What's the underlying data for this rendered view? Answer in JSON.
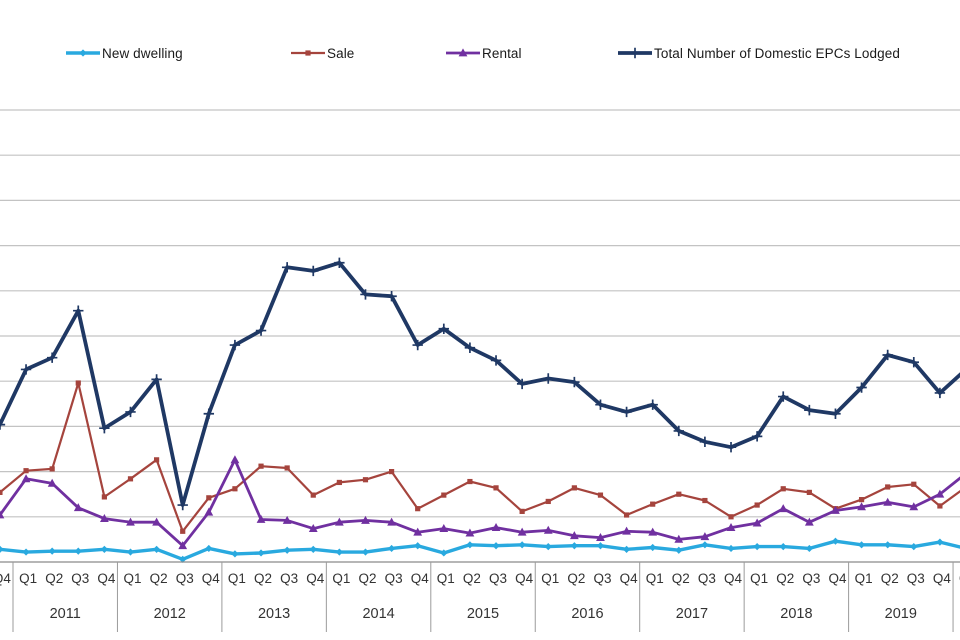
{
  "legend": {
    "items": [
      {
        "label": "New dwelling",
        "color": "#29A9DF",
        "marker": "diamond"
      },
      {
        "label": "Sale",
        "color": "#A5443D",
        "marker": "square"
      },
      {
        "label": "Rental",
        "color": "#7030A0",
        "marker": "triangle"
      },
      {
        "label": "Total Number of Domestic EPCs Lodged",
        "color": "#1F3864",
        "marker": "plus"
      }
    ]
  },
  "axis": {
    "quarter_labels": [
      "Q1",
      "Q2",
      "Q3",
      "Q4"
    ],
    "years": [
      "2011",
      "2012",
      "2013",
      "2014",
      "2015",
      "2016",
      "2017",
      "2018",
      "2019"
    ],
    "left_partial_label": "4",
    "right_partial_label": "Q"
  },
  "chart_data": {
    "type": "line",
    "x_categories": [
      "2010 Q4",
      "2011 Q1",
      "2011 Q2",
      "2011 Q3",
      "2011 Q4",
      "2012 Q1",
      "2012 Q2",
      "2012 Q3",
      "2012 Q4",
      "2013 Q1",
      "2013 Q2",
      "2013 Q3",
      "2013 Q4",
      "2014 Q1",
      "2014 Q2",
      "2014 Q3",
      "2014 Q4",
      "2015 Q1",
      "2015 Q2",
      "2015 Q3",
      "2015 Q4",
      "2016 Q1",
      "2016 Q2",
      "2016 Q3",
      "2016 Q4",
      "2017 Q1",
      "2017 Q2",
      "2017 Q3",
      "2017 Q4",
      "2018 Q1",
      "2018 Q2",
      "2018 Q3",
      "2018 Q4",
      "2019 Q1",
      "2019 Q2",
      "2019 Q3",
      "2019 Q4",
      "2020 Q1"
    ],
    "series": [
      {
        "name": "New dwelling",
        "color": "#29A9DF",
        "marker": "diamond",
        "values": [
          1400,
          1100,
          1200,
          1200,
          1400,
          1100,
          1400,
          300,
          1500,
          900,
          1000,
          1300,
          1400,
          1100,
          1100,
          1500,
          1800,
          1000,
          1900,
          1800,
          1900,
          1700,
          1800,
          1800,
          1400,
          1600,
          1300,
          1900,
          1500,
          1700,
          1700,
          1500,
          2300,
          1900,
          1900,
          1700,
          2200,
          1500
        ]
      },
      {
        "name": "Sale",
        "color": "#A5443D",
        "marker": "square",
        "values": [
          7700,
          10100,
          10300,
          19800,
          7200,
          9200,
          11300,
          3400,
          7100,
          8100,
          10600,
          10400,
          7400,
          8800,
          9100,
          10000,
          5900,
          7400,
          8900,
          8200,
          5600,
          6700,
          8200,
          7400,
          5200,
          6400,
          7500,
          6800,
          5000,
          6300,
          8100,
          7700,
          5900,
          6900,
          8300,
          8600,
          6200,
          8300
        ]
      },
      {
        "name": "Rental",
        "color": "#7030A0",
        "marker": "triangle",
        "values": [
          5200,
          9200,
          8700,
          6000,
          4800,
          4400,
          4400,
          1800,
          5500,
          11300,
          4700,
          4600,
          3700,
          4400,
          4600,
          4400,
          3300,
          3700,
          3200,
          3800,
          3300,
          3500,
          2900,
          2700,
          3400,
          3300,
          2500,
          2800,
          3800,
          4300,
          5900,
          4400,
          5700,
          6100,
          6600,
          6100,
          7500,
          9800
        ]
      },
      {
        "name": "Total Number of Domestic EPCs Lodged",
        "color": "#1F3864",
        "marker": "plus",
        "values": [
          15200,
          21300,
          22600,
          27800,
          14800,
          16600,
          20200,
          6300,
          16400,
          24000,
          25600,
          32600,
          32200,
          33100,
          29600,
          29400,
          24000,
          25800,
          23700,
          22300,
          19700,
          20300,
          19900,
          17400,
          16600,
          17400,
          14500,
          13300,
          12700,
          13900,
          18300,
          16800,
          16400,
          19300,
          22900,
          22100,
          18700,
          21300
        ]
      }
    ],
    "ylim": [
      0,
      50000
    ],
    "gridlines": {
      "interval": 5000,
      "count": 10,
      "visible": true
    },
    "y_tick_labels_visible": false,
    "x_axis_cropped": {
      "left": "2010 Q4 partially visible",
      "right": "2020 Q1 partially visible"
    },
    "legend_position": "top",
    "values_estimated_from_unlabeled_gridlines": true
  }
}
